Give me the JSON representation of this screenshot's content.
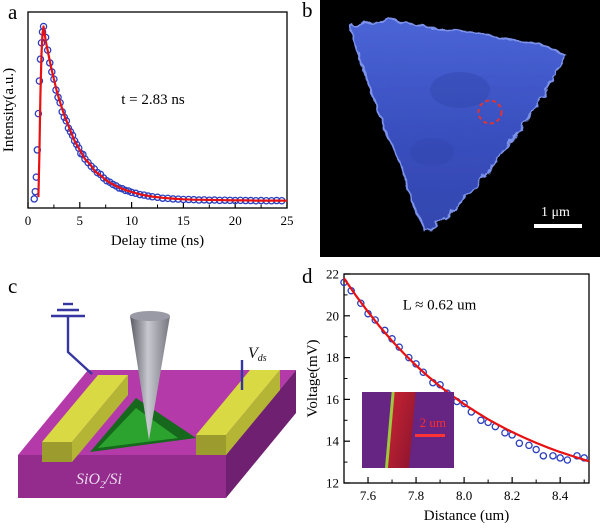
{
  "figure": {
    "background": "#ffffff"
  },
  "panels": {
    "a": {
      "label": "a"
    },
    "b": {
      "label": "b",
      "scale_label": "1 μm"
    },
    "c": {
      "label": "c",
      "substrate_text": {
        "p1": "SiO",
        "sub": "2",
        "p2": "/Si"
      },
      "vds": {
        "main": "V",
        "sub": "ds"
      }
    },
    "d": {
      "label": "d",
      "inset": {
        "scale_label": "2 um"
      }
    }
  },
  "chart_data": [
    {
      "panel": "a",
      "mount": "chart-a",
      "type": "scatter",
      "title": "",
      "xlabel": "Delay time (ns)",
      "ylabel": "Intensity(a.u.)",
      "xlim": [
        0,
        25
      ],
      "ylim": [
        0,
        1.08
      ],
      "xticks": [
        {
          "v": 0,
          "label": "0"
        },
        {
          "v": 5,
          "label": "5"
        },
        {
          "v": 10,
          "label": "10"
        },
        {
          "v": 15,
          "label": "15"
        },
        {
          "v": 20,
          "label": "20"
        },
        {
          "v": 25,
          "label": "25"
        }
      ],
      "xminor": [
        2.5,
        7.5,
        12.5,
        17.5,
        22.5
      ],
      "yticks": [],
      "yminor": [],
      "marker_color": "#2a3fbf",
      "line_color": "#e81010",
      "annotation": {
        "text": "t = 2.83 ns",
        "fx": 0.36,
        "fy": 0.47
      },
      "scatter": {
        "x": [
          0.6,
          0.7,
          0.8,
          0.9,
          1.0,
          1.1,
          1.2,
          1.3,
          1.4,
          1.5,
          1.7,
          1.9,
          2.1,
          2.3,
          2.5,
          2.7,
          2.9,
          3.1,
          3.3,
          3.5,
          3.7,
          3.9,
          4.1,
          4.3,
          4.5,
          4.7,
          4.9,
          5.1,
          5.3,
          5.5,
          5.8,
          6.1,
          6.4,
          6.7,
          7.0,
          7.3,
          7.6,
          7.9,
          8.2,
          8.5,
          8.8,
          9.1,
          9.4,
          9.7,
          10.0,
          10.4,
          10.8,
          11.2,
          11.6,
          12.0,
          12.5,
          13.0,
          13.5,
          14.0,
          14.5,
          15.0,
          15.5,
          16.0,
          16.5,
          17.0,
          17.5,
          18.0,
          18.5,
          19.0,
          19.5,
          20.0,
          20.5,
          21.0,
          21.5,
          22.0,
          22.5,
          23.0,
          23.5,
          24.0,
          24.5
        ],
        "y": [
          0.05,
          0.09,
          0.17,
          0.32,
          0.52,
          0.7,
          0.82,
          0.91,
          0.97,
          1.0,
          0.94,
          0.87,
          0.8,
          0.75,
          0.71,
          0.65,
          0.61,
          0.58,
          0.53,
          0.5,
          0.48,
          0.44,
          0.42,
          0.4,
          0.37,
          0.35,
          0.33,
          0.3,
          0.295,
          0.27,
          0.25,
          0.23,
          0.215,
          0.195,
          0.185,
          0.165,
          0.15,
          0.142,
          0.13,
          0.122,
          0.11,
          0.106,
          0.097,
          0.094,
          0.086,
          0.081,
          0.074,
          0.071,
          0.066,
          0.062,
          0.059,
          0.054,
          0.053,
          0.05,
          0.049,
          0.047,
          0.047,
          0.046,
          0.044,
          0.045,
          0.043,
          0.044,
          0.042,
          0.043,
          0.042,
          0.041,
          0.042,
          0.041,
          0.041,
          0.04,
          0.041,
          0.04,
          0.04,
          0.041,
          0.04
        ]
      },
      "fit": {
        "x": [
          1.0,
          1.1,
          1.2,
          1.3,
          1.4,
          1.5,
          1.75,
          2.0,
          2.25,
          2.5,
          2.75,
          3.0,
          3.5,
          4.0,
          4.5,
          5.0,
          5.5,
          6.0,
          6.5,
          7.0,
          7.5,
          8.0,
          8.5,
          9.0,
          9.5,
          10.0,
          11.0,
          12.0,
          13.0,
          14.0,
          15.0,
          16.0,
          17.0,
          18.0,
          19.0,
          20.0,
          21.0,
          22.0,
          23.0,
          24.0,
          25.0
        ],
        "y": [
          0.06,
          0.3,
          0.62,
          0.85,
          0.96,
          1.0,
          0.91,
          0.84,
          0.77,
          0.71,
          0.65,
          0.6,
          0.51,
          0.44,
          0.37,
          0.32,
          0.27,
          0.24,
          0.2,
          0.18,
          0.155,
          0.136,
          0.121,
          0.108,
          0.097,
          0.088,
          0.073,
          0.063,
          0.056,
          0.052,
          0.048,
          0.046,
          0.045,
          0.044,
          0.043,
          0.042,
          0.042,
          0.041,
          0.041,
          0.041,
          0.04
        ]
      }
    },
    {
      "panel": "d",
      "mount": "chart-d",
      "type": "scatter",
      "title": "",
      "xlabel": "Distance (um)",
      "ylabel": "Voltage(mV)",
      "xlim": [
        7.5,
        8.52
      ],
      "ylim": [
        12,
        22
      ],
      "xticks": [
        {
          "v": 7.6,
          "label": "7.6"
        },
        {
          "v": 7.8,
          "label": "7.8"
        },
        {
          "v": 8.0,
          "label": "8.0"
        },
        {
          "v": 8.2,
          "label": "8.2"
        },
        {
          "v": 8.4,
          "label": "8.4"
        }
      ],
      "xminor": [
        7.7,
        7.9,
        8.1,
        8.3,
        8.5
      ],
      "yticks": [
        {
          "v": 12,
          "label": "12"
        },
        {
          "v": 14,
          "label": "14"
        },
        {
          "v": 16,
          "label": "16"
        },
        {
          "v": 18,
          "label": "18"
        },
        {
          "v": 20,
          "label": "20"
        },
        {
          "v": 22,
          "label": "22"
        }
      ],
      "yminor": [
        13,
        15,
        17,
        19,
        21
      ],
      "marker_color": "#2a3fbf",
      "line_color": "#e81010",
      "annotation": {
        "text": "L ≈ 0.62 um",
        "fx": 0.24,
        "fy": 0.17
      },
      "scatter": {
        "x": [
          7.5,
          7.53,
          7.57,
          7.6,
          7.63,
          7.67,
          7.7,
          7.73,
          7.77,
          7.8,
          7.83,
          7.87,
          7.9,
          7.93,
          7.97,
          8.0,
          8.03,
          8.07,
          8.1,
          8.13,
          8.17,
          8.2,
          8.23,
          8.27,
          8.3,
          8.33,
          8.37,
          8.4,
          8.43,
          8.47,
          8.5
        ],
        "y": [
          21.6,
          21.2,
          20.6,
          20.1,
          19.8,
          19.3,
          18.9,
          18.5,
          18.0,
          17.7,
          17.3,
          16.8,
          16.7,
          16.3,
          15.9,
          15.8,
          15.4,
          15.0,
          14.9,
          14.7,
          14.4,
          14.3,
          13.9,
          13.8,
          13.6,
          13.3,
          13.3,
          13.2,
          13.1,
          13.3,
          13.2
        ]
      },
      "fit": {
        "x": [
          7.5,
          7.55,
          7.6,
          7.65,
          7.7,
          7.75,
          7.8,
          7.85,
          7.9,
          7.95,
          8.0,
          8.05,
          8.1,
          8.15,
          8.2,
          8.25,
          8.3,
          8.35,
          8.4,
          8.45,
          8.5,
          8.52
        ],
        "y": [
          21.8,
          20.96,
          20.19,
          19.47,
          18.8,
          18.19,
          17.62,
          17.1,
          16.62,
          16.18,
          15.77,
          15.4,
          15.05,
          14.73,
          14.44,
          14.17,
          13.92,
          13.69,
          13.48,
          13.29,
          13.11,
          13.04
        ]
      }
    }
  ]
}
